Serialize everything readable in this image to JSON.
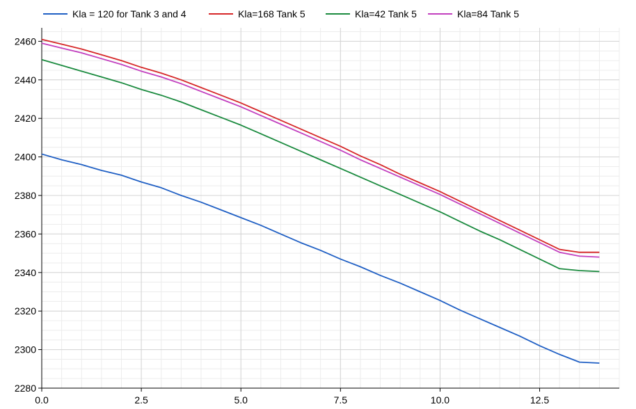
{
  "chart_data": {
    "type": "line",
    "title": "",
    "xlabel": "",
    "ylabel": "",
    "xlim": [
      0,
      14.5
    ],
    "ylim": [
      2280,
      2467
    ],
    "x_ticks": [
      0.0,
      2.5,
      5.0,
      7.5,
      10.0,
      12.5
    ],
    "x_tick_labels": [
      "0.0",
      "2.5",
      "5.0",
      "7.5",
      "10.0",
      "12.5"
    ],
    "y_ticks": [
      2280,
      2300,
      2320,
      2340,
      2360,
      2380,
      2400,
      2420,
      2440,
      2460
    ],
    "y_tick_labels": [
      "2280",
      "2300",
      "2320",
      "2340",
      "2360",
      "2380",
      "2400",
      "2420",
      "2440",
      "2460"
    ],
    "grid": true,
    "legend_position": "top",
    "series": [
      {
        "name": "Kla = 120 for Tank 3 and 4",
        "color": "#1f5fc4",
        "x": [
          0,
          0.5,
          1,
          1.5,
          2,
          2.5,
          3,
          3.5,
          4,
          4.5,
          5,
          5.5,
          6,
          6.5,
          7,
          7.5,
          8,
          8.5,
          9,
          9.5,
          10,
          10.5,
          11,
          11.5,
          12,
          12.5,
          13,
          13.5,
          14
        ],
        "y": [
          2401.5,
          2398.5,
          2396,
          2393,
          2390.5,
          2387,
          2384,
          2380,
          2376.5,
          2372.5,
          2368.5,
          2364.5,
          2360,
          2355.5,
          2351.5,
          2347,
          2343,
          2338.5,
          2334.5,
          2330,
          2325.5,
          2320.5,
          2316,
          2311.5,
          2307,
          2302,
          2297.5,
          2293.5,
          2293
        ]
      },
      {
        "name": "Kla=168 Tank 5",
        "color": "#d62728",
        "x": [
          0,
          0.5,
          1,
          1.5,
          2,
          2.5,
          3,
          3.5,
          4,
          4.5,
          5,
          5.5,
          6,
          6.5,
          7,
          7.5,
          8,
          8.5,
          9,
          9.5,
          10,
          10.5,
          11,
          11.5,
          12,
          12.5,
          13,
          13.5,
          14
        ],
        "y": [
          2461,
          2458.5,
          2456,
          2453,
          2450,
          2446.5,
          2443.5,
          2440,
          2436,
          2432,
          2428,
          2423.5,
          2419,
          2414.5,
          2410,
          2405.5,
          2400.5,
          2396,
          2391,
          2386.5,
          2382,
          2377,
          2372,
          2367,
          2362,
          2357,
          2352,
          2350.5,
          2350.5
        ]
      },
      {
        "name": "Kla=42 Tank 5",
        "color": "#1a8a3e",
        "x": [
          0,
          0.5,
          1,
          1.5,
          2,
          2.5,
          3,
          3.5,
          4,
          4.5,
          5,
          5.5,
          6,
          6.5,
          7,
          7.5,
          8,
          8.5,
          9,
          9.5,
          10,
          10.5,
          11,
          11.5,
          12,
          12.5,
          13,
          13.5,
          14
        ],
        "y": [
          2450.5,
          2447.5,
          2444.5,
          2441.5,
          2438.5,
          2435,
          2432,
          2428.5,
          2424.5,
          2420.5,
          2416.5,
          2412,
          2407.5,
          2403,
          2398.5,
          2394,
          2389.5,
          2385,
          2380.5,
          2376,
          2371.5,
          2366.5,
          2361.5,
          2357,
          2352,
          2347,
          2342,
          2341,
          2340.5
        ]
      },
      {
        "name": "Kla=84 Tank 5",
        "color": "#c23fbf",
        "x": [
          0,
          0.5,
          1,
          1.5,
          2,
          2.5,
          3,
          3.5,
          4,
          4.5,
          5,
          5.5,
          6,
          6.5,
          7,
          7.5,
          8,
          8.5,
          9,
          9.5,
          10,
          10.5,
          11,
          11.5,
          12,
          12.5,
          13,
          13.5,
          14
        ],
        "y": [
          2459,
          2456.5,
          2454,
          2451,
          2448,
          2444.5,
          2441.5,
          2438,
          2434,
          2430,
          2426,
          2421.5,
          2417,
          2412.5,
          2408,
          2403.5,
          2398.5,
          2394,
          2389.5,
          2385,
          2380.5,
          2375.5,
          2370.5,
          2365.5,
          2360.5,
          2355.5,
          2350.5,
          2348.5,
          2348
        ]
      }
    ]
  }
}
